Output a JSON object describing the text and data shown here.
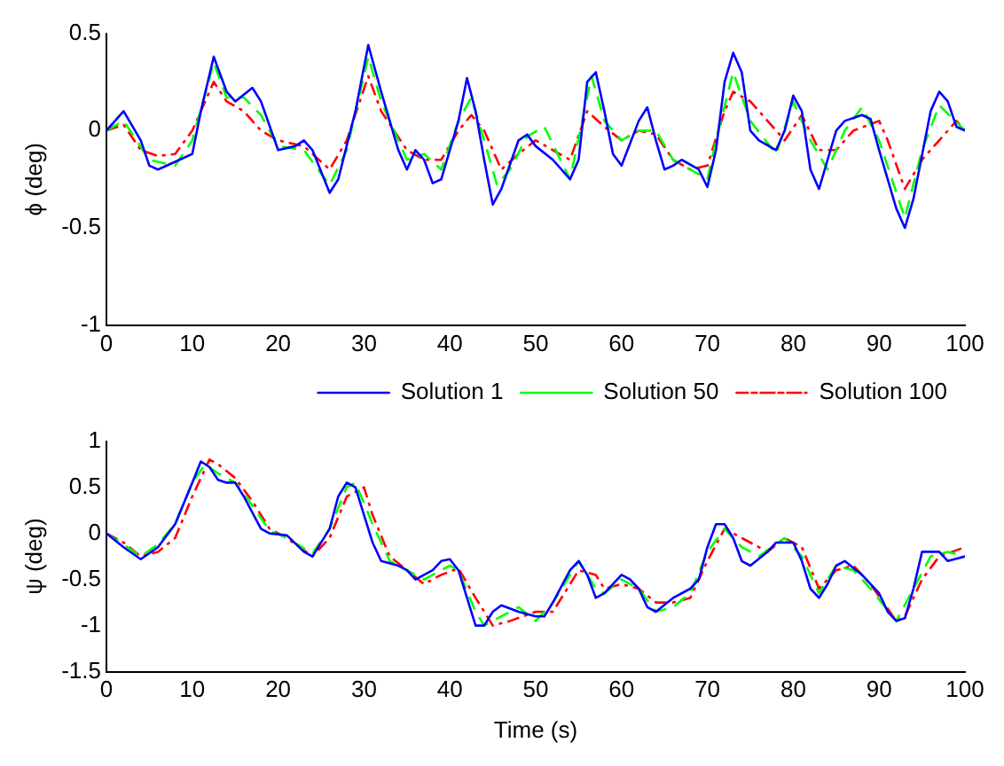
{
  "chart_data": [
    {
      "type": "line",
      "ylabel": "ϕ (deg)",
      "xlim": [
        0,
        100
      ],
      "ylim": [
        -1,
        0.5
      ],
      "xticks": [
        0,
        10,
        20,
        30,
        40,
        50,
        60,
        70,
        80,
        90,
        100
      ],
      "yticks": [
        -1,
        -0.5,
        0,
        0.5
      ],
      "grid": false,
      "legend": "bottom right",
      "series": [
        {
          "name": "Solution 1",
          "color": "#0000ff",
          "line_style": "solid",
          "x": [
            0,
            2,
            4,
            5,
            6,
            8,
            10,
            11,
            12.5,
            14,
            15,
            17,
            18,
            20,
            22,
            23,
            24,
            26,
            27,
            29,
            30.5,
            32,
            34,
            35,
            36,
            37,
            38,
            39,
            40,
            41,
            42,
            43,
            44,
            45,
            46,
            48,
            49,
            50,
            52,
            54,
            55,
            56,
            57,
            58,
            59,
            60,
            62,
            63,
            64,
            65,
            66,
            67,
            69,
            70,
            71,
            72,
            73,
            74,
            75,
            76,
            78,
            79,
            80,
            81,
            82,
            83,
            84,
            85,
            86,
            88,
            89,
            90,
            92,
            93,
            94,
            96,
            97,
            98,
            99,
            100
          ],
          "values": [
            0,
            0.1,
            -0.05,
            -0.18,
            -0.2,
            -0.16,
            -0.12,
            0.1,
            0.38,
            0.2,
            0.15,
            0.22,
            0.15,
            -0.1,
            -0.08,
            -0.05,
            -0.1,
            -0.32,
            -0.25,
            0.1,
            0.44,
            0.2,
            -0.1,
            -0.2,
            -0.1,
            -0.15,
            -0.27,
            -0.25,
            -0.1,
            0.05,
            0.27,
            0.1,
            -0.15,
            -0.38,
            -0.3,
            -0.05,
            -0.02,
            -0.08,
            -0.15,
            -0.25,
            -0.15,
            0.25,
            0.3,
            0.1,
            -0.12,
            -0.18,
            0.05,
            0.12,
            -0.05,
            -0.2,
            -0.18,
            -0.15,
            -0.2,
            -0.29,
            -0.1,
            0.25,
            0.4,
            0.3,
            0,
            -0.05,
            -0.1,
            0,
            0.18,
            0.1,
            -0.2,
            -0.3,
            -0.15,
            0,
            0.05,
            0.08,
            0.06,
            -0.1,
            -0.4,
            -0.5,
            -0.35,
            0.1,
            0.2,
            0.15,
            0.02,
            0
          ]
        },
        {
          "name": "Solution 50",
          "color": "#00ff00",
          "line_style": "dashed",
          "x": [
            0,
            2,
            5,
            8,
            10,
            12.5,
            14,
            16,
            18,
            20,
            23,
            26,
            28,
            30.5,
            32,
            35,
            37,
            39,
            41,
            42.5,
            44,
            45.5,
            47,
            49,
            51,
            54,
            56.5,
            58,
            60,
            62,
            64,
            66,
            68,
            70,
            71,
            73,
            75,
            78,
            80,
            82,
            84,
            86,
            88,
            90,
            93,
            95,
            97,
            100
          ],
          "values": [
            0,
            0.05,
            -0.15,
            -0.18,
            -0.05,
            0.35,
            0.17,
            0.17,
            0.08,
            -0.08,
            -0.1,
            -0.28,
            -0.1,
            0.38,
            0.15,
            -0.15,
            -0.12,
            -0.2,
            0.05,
            0.17,
            -0.05,
            -0.28,
            -0.2,
            -0.03,
            0.02,
            -0.25,
            0.28,
            0.05,
            -0.05,
            0,
            0,
            -0.15,
            -0.2,
            -0.25,
            -0.05,
            0.3,
            0.05,
            -0.12,
            0.15,
            -0.05,
            -0.2,
            0,
            0.12,
            -0.05,
            -0.45,
            -0.1,
            0.13,
            0
          ]
        },
        {
          "name": "Solution 100",
          "color": "#ff0000",
          "line_style": "dashdot",
          "x": [
            0,
            2,
            4,
            6,
            8,
            10,
            12.5,
            14,
            16,
            18,
            20,
            23,
            26,
            28,
            30.5,
            32,
            35,
            37,
            39,
            41,
            42.5,
            44,
            46,
            48,
            50,
            52,
            54,
            56,
            58,
            60,
            62,
            64,
            66,
            68,
            70,
            72,
            73,
            75,
            77,
            79,
            81,
            83,
            85,
            87,
            90,
            91,
            93,
            95,
            97,
            99,
            100
          ],
          "values": [
            0,
            0.03,
            -0.1,
            -0.13,
            -0.12,
            0,
            0.25,
            0.15,
            0.1,
            0,
            -0.05,
            -0.08,
            -0.2,
            -0.05,
            0.28,
            0.1,
            -0.1,
            -0.15,
            -0.15,
            0,
            0.08,
            0,
            -0.2,
            -0.12,
            -0.05,
            -0.1,
            -0.15,
            0.1,
            0.02,
            -0.05,
            0,
            -0.02,
            -0.15,
            -0.2,
            -0.18,
            0.1,
            0.2,
            0.15,
            0.05,
            -0.05,
            0.08,
            -0.1,
            -0.1,
            0,
            0.05,
            -0.05,
            -0.3,
            -0.15,
            -0.05,
            0.05,
            0
          ]
        }
      ]
    },
    {
      "type": "line",
      "xlabel": "Time (s)",
      "ylabel": "ψ (deg)",
      "xlim": [
        0,
        100
      ],
      "ylim": [
        -1.5,
        1
      ],
      "xticks": [
        0,
        10,
        20,
        30,
        40,
        50,
        60,
        70,
        80,
        90,
        100
      ],
      "yticks": [
        -1.5,
        -1,
        -0.5,
        0,
        0.5,
        1
      ],
      "grid": false,
      "series": [
        {
          "color": "#0000ff",
          "line_style": "solid",
          "x": [
            0,
            2,
            4,
            6,
            8,
            10,
            11,
            12,
            13,
            14,
            15,
            16,
            18,
            19,
            21,
            23,
            24,
            26,
            27,
            28,
            29,
            30,
            31,
            32,
            34,
            35,
            36,
            38,
            39,
            40,
            41,
            42,
            43,
            44,
            45,
            46,
            48,
            50,
            51,
            52,
            54,
            55,
            56,
            57,
            58,
            60,
            61,
            62,
            63,
            64,
            66,
            68,
            69,
            70,
            71,
            72,
            73,
            74,
            75,
            77,
            78,
            80,
            81,
            82,
            83,
            84,
            85,
            86,
            88,
            90,
            91,
            92,
            93,
            94,
            95,
            96,
            97,
            98,
            100
          ],
          "values": [
            0,
            -0.15,
            -0.28,
            -0.15,
            0.1,
            0.55,
            0.78,
            0.72,
            0.58,
            0.55,
            0.55,
            0.4,
            0.05,
            0,
            -0.02,
            -0.2,
            -0.25,
            0.05,
            0.4,
            0.55,
            0.5,
            0.2,
            -0.1,
            -0.3,
            -0.35,
            -0.4,
            -0.5,
            -0.4,
            -0.3,
            -0.28,
            -0.4,
            -0.7,
            -1,
            -1,
            -0.85,
            -0.78,
            -0.85,
            -0.9,
            -0.9,
            -0.75,
            -0.4,
            -0.3,
            -0.45,
            -0.7,
            -0.65,
            -0.45,
            -0.5,
            -0.6,
            -0.8,
            -0.85,
            -0.7,
            -0.6,
            -0.5,
            -0.15,
            0.1,
            0.1,
            -0.05,
            -0.3,
            -0.35,
            -0.2,
            -0.1,
            -0.1,
            -0.3,
            -0.6,
            -0.7,
            -0.55,
            -0.35,
            -0.3,
            -0.45,
            -0.65,
            -0.85,
            -0.95,
            -0.92,
            -0.6,
            -0.2,
            -0.2,
            -0.2,
            -0.3,
            -0.25
          ]
        },
        {
          "color": "#00ff00",
          "line_style": "dashed",
          "x": [
            0,
            2,
            4,
            6,
            8,
            10,
            11.5,
            13,
            15,
            17,
            19,
            21,
            24,
            26,
            28,
            29,
            31,
            33,
            35,
            37,
            39,
            40,
            41,
            43,
            44,
            46,
            48,
            50,
            52,
            55,
            57,
            58,
            60,
            62,
            64,
            66,
            68,
            70,
            72,
            74,
            76,
            79,
            81,
            83,
            85,
            87,
            89,
            92,
            94,
            96,
            98,
            100
          ],
          "values": [
            0,
            -0.12,
            -0.25,
            -0.12,
            0.1,
            0.55,
            0.75,
            0.65,
            0.55,
            0.3,
            0.03,
            -0.05,
            -0.22,
            0.05,
            0.5,
            0.55,
            0.1,
            -0.3,
            -0.4,
            -0.5,
            -0.4,
            -0.35,
            -0.4,
            -0.85,
            -1,
            -0.9,
            -0.8,
            -0.95,
            -0.75,
            -0.3,
            -0.6,
            -0.65,
            -0.5,
            -0.6,
            -0.85,
            -0.8,
            -0.65,
            -0.2,
            0.05,
            -0.15,
            -0.25,
            -0.05,
            -0.25,
            -0.65,
            -0.35,
            -0.4,
            -0.6,
            -0.95,
            -0.6,
            -0.25,
            -0.2,
            -0.25
          ]
        },
        {
          "color": "#ff0000",
          "line_style": "dashdot",
          "x": [
            0,
            2,
            4,
            6,
            8,
            10,
            12,
            13,
            15,
            17,
            19,
            21,
            24,
            26,
            28,
            30,
            31,
            33,
            35,
            37,
            39,
            41,
            43,
            45,
            47,
            50,
            52,
            55,
            57,
            58,
            60,
            62,
            64,
            66,
            68,
            70,
            72,
            75,
            77,
            79,
            81,
            83,
            85,
            87,
            89,
            92,
            93,
            95,
            97,
            100
          ],
          "values": [
            0,
            -0.1,
            -0.25,
            -0.2,
            -0.05,
            0.4,
            0.8,
            0.75,
            0.6,
            0.35,
            0.05,
            -0.05,
            -0.25,
            -0.05,
            0.4,
            0.5,
            0.2,
            -0.25,
            -0.4,
            -0.55,
            -0.45,
            -0.38,
            -0.7,
            -1,
            -0.95,
            -0.85,
            -0.85,
            -0.4,
            -0.45,
            -0.6,
            -0.55,
            -0.6,
            -0.75,
            -0.75,
            -0.7,
            -0.3,
            0.05,
            -0.1,
            -0.2,
            -0.05,
            -0.15,
            -0.6,
            -0.4,
            -0.35,
            -0.55,
            -0.95,
            -0.9,
            -0.5,
            -0.25,
            -0.15
          ]
        }
      ]
    }
  ]
}
